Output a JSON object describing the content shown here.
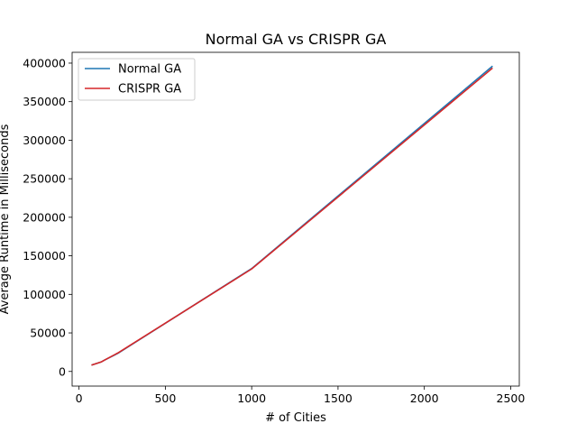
{
  "chart_data": {
    "type": "line",
    "title": "Normal GA vs CRISPR GA",
    "xlabel": "# of Cities",
    "ylabel": "Average Runtime in Milliseconds",
    "xlim": [
      -40,
      2550
    ],
    "ylim": [
      -19000,
      414000
    ],
    "xticks": [
      0,
      500,
      1000,
      1500,
      2000,
      2500
    ],
    "yticks": [
      0,
      50000,
      100000,
      150000,
      200000,
      250000,
      300000,
      350000,
      400000
    ],
    "grid": false,
    "legend_position": "top-left",
    "series": [
      {
        "name": "Normal GA",
        "color": "#1f77b4",
        "x": [
          76,
          130,
          150,
          225,
          1000,
          2392
        ],
        "y": [
          8500,
          12500,
          15000,
          23500,
          133500,
          395500
        ]
      },
      {
        "name": "CRISPR GA",
        "color": "#d62728",
        "x": [
          76,
          130,
          150,
          225,
          1000,
          2392
        ],
        "y": [
          8500,
          12500,
          15000,
          24000,
          133000,
          393000
        ]
      }
    ]
  }
}
